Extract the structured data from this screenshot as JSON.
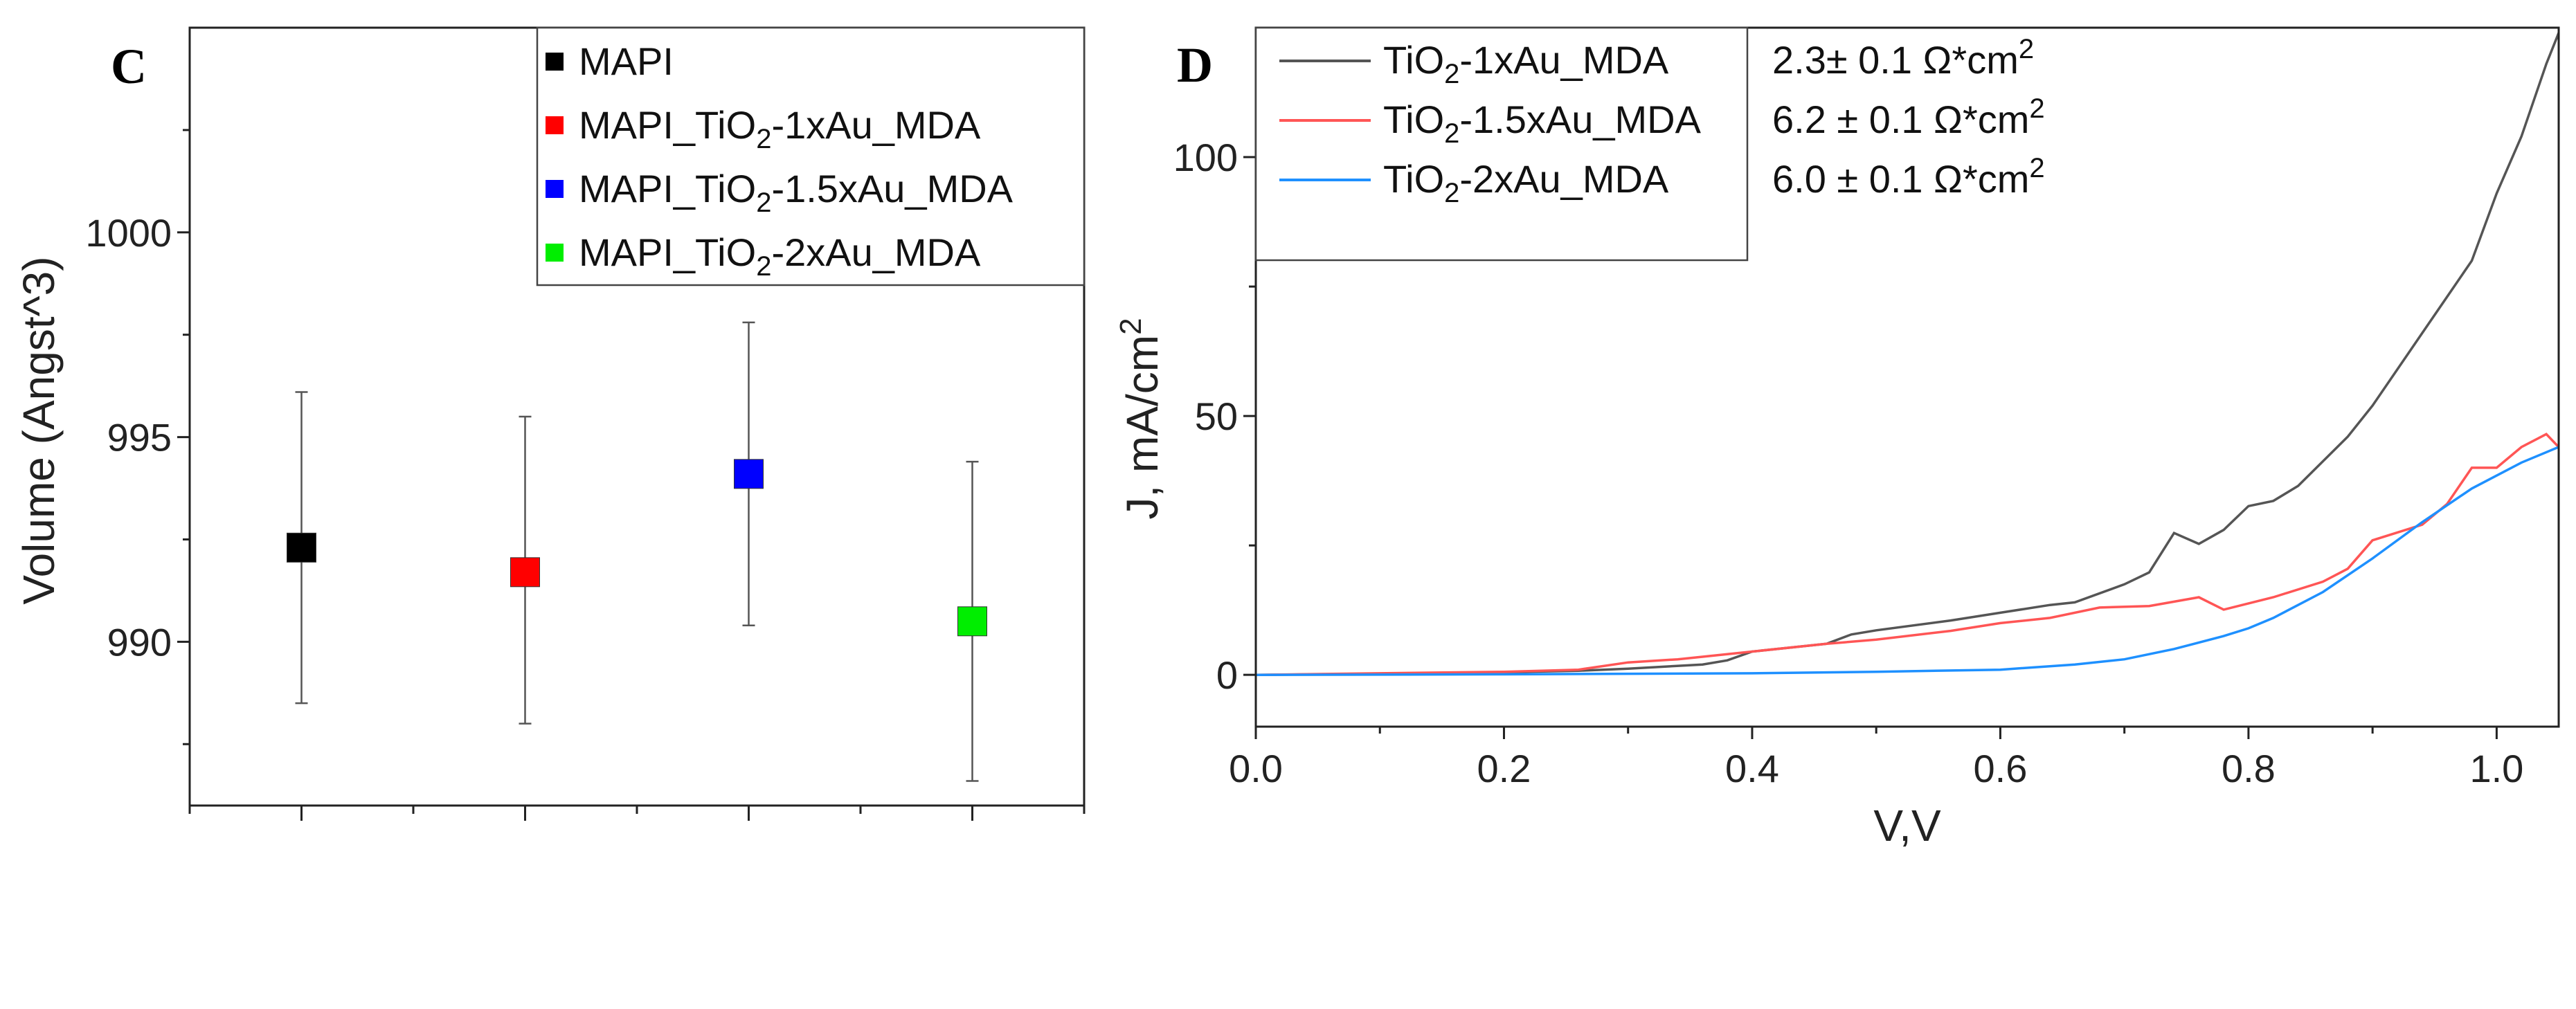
{
  "chart_data": [
    {
      "type": "scatter",
      "panel_label": "C",
      "title": "",
      "xlabel": "",
      "ylabel": "Volume (Angst^3)",
      "xlim": [
        0.5,
        4.5
      ],
      "ylim": [
        986,
        1005
      ],
      "x_ticks": [
        1,
        2,
        3,
        4
      ],
      "y_ticks": [
        990,
        995,
        1000
      ],
      "y_tick_labels": [
        "990",
        "995",
        "1000"
      ],
      "y_minor_ticks": [
        987.5,
        992.5,
        997.5,
        1002.5
      ],
      "legend_position": "top-right",
      "series": [
        {
          "name": "MAPI",
          "label": {
            "pre": "MAPI",
            "sub": "",
            "post": ""
          },
          "color": "#000000",
          "x": 1,
          "y": 992.3,
          "err_low": 988.5,
          "err_high": 996.1
        },
        {
          "name": "MAPI_TiO2-1xAu_MDA",
          "label": {
            "pre": "MAPI_TiO",
            "sub": "2",
            "post": "-1xAu_MDA"
          },
          "color": "#ff0000",
          "x": 2,
          "y": 991.7,
          "err_low": 988.0,
          "err_high": 995.5
        },
        {
          "name": "MAPI_TiO2-1.5xAu_MDA",
          "label": {
            "pre": "MAPI_TiO",
            "sub": "2",
            "post": "-1.5xAu_MDA"
          },
          "color": "#0000ff",
          "x": 3,
          "y": 994.1,
          "err_low": 990.4,
          "err_high": 997.8
        },
        {
          "name": "MAPI_TiO2-2xAu_MDA",
          "label": {
            "pre": "MAPI_TiO",
            "sub": "2",
            "post": "-2xAu_MDA"
          },
          "color": "#00ee00",
          "x": 4,
          "y": 990.5,
          "err_low": 986.6,
          "err_high": 994.4
        }
      ]
    },
    {
      "type": "line",
      "panel_label": "D",
      "title": "",
      "xlabel": "V,V",
      "ylabel": {
        "pre": "J, mA/cm",
        "sup": "2"
      },
      "xlim": [
        0,
        1.05
      ],
      "ylim": [
        -10,
        125
      ],
      "x_ticks": [
        0,
        0.2,
        0.4,
        0.6,
        0.8,
        1.0
      ],
      "x_tick_labels": [
        "0.0",
        "0.2",
        "0.4",
        "0.6",
        "0.8",
        "1.0"
      ],
      "x_minor_ticks": [
        0.1,
        0.3,
        0.5,
        0.7,
        0.9
      ],
      "y_ticks": [
        0,
        50,
        100
      ],
      "y_tick_labels": [
        "0",
        "50",
        "100"
      ],
      "y_minor_ticks": [
        25,
        75
      ],
      "legend_position": "top-left",
      "series": [
        {
          "name": "TiO2-1xAu_MDA",
          "label": {
            "pre": "TiO",
            "sub": "2",
            "post": "-1xAu_MDA"
          },
          "color": "#555555",
          "annotation": {
            "text": "2.3± 0.1 Ω*cm",
            "sup": "2",
            "color": "#000000"
          },
          "x": [
            0,
            0.1,
            0.2,
            0.26,
            0.3,
            0.36,
            0.38,
            0.4,
            0.44,
            0.46,
            0.48,
            0.5,
            0.56,
            0.6,
            0.64,
            0.66,
            0.7,
            0.72,
            0.74,
            0.76,
            0.78,
            0.8,
            0.82,
            0.84,
            0.88,
            0.9,
            0.94,
            0.96,
            0.98,
            1.0,
            1.02,
            1.04,
            1.05
          ],
          "y": [
            0,
            0.2,
            0.5,
            0.8,
            1.2,
            2,
            2.8,
            4.5,
            5.5,
            6,
            7.8,
            8.6,
            10.5,
            12,
            13.5,
            14,
            17.5,
            19.8,
            27.4,
            25.3,
            28,
            32.6,
            33.6,
            36.5,
            46,
            52,
            66,
            73,
            80,
            93,
            104,
            118,
            124
          ]
        },
        {
          "name": "TiO2-1.5xAu_MDA",
          "label": {
            "pre": "TiO",
            "sub": "2",
            "post": "-1.5xAu_MDA"
          },
          "color": "#ff5555",
          "annotation": {
            "text": "6.2 ± 0.1 Ω*cm",
            "sup": "2",
            "color": "#ff0000"
          },
          "x": [
            0,
            0.1,
            0.2,
            0.26,
            0.3,
            0.34,
            0.4,
            0.46,
            0.5,
            0.56,
            0.6,
            0.64,
            0.68,
            0.72,
            0.76,
            0.78,
            0.82,
            0.86,
            0.88,
            0.9,
            0.94,
            0.96,
            0.98,
            1.0,
            1.02,
            1.04,
            1.05
          ],
          "y": [
            0,
            0.3,
            0.6,
            1,
            2.4,
            3,
            4.5,
            6,
            6.8,
            8.5,
            10,
            11,
            13,
            13.3,
            15,
            12.6,
            15,
            18,
            20.5,
            26,
            29,
            33,
            40,
            40,
            44,
            46.5,
            44
          ]
        },
        {
          "name": "TiO2-2xAu_MDA",
          "label": {
            "pre": "TiO",
            "sub": "2",
            "post": "-2xAu_MDA"
          },
          "color": "#1e90ff",
          "annotation": {
            "text": "6.0 ± 0.1 Ω*cm",
            "sup": "2",
            "color": "#0000ff"
          },
          "x": [
            0,
            0.2,
            0.4,
            0.5,
            0.6,
            0.66,
            0.7,
            0.74,
            0.78,
            0.8,
            0.82,
            0.86,
            0.9,
            0.94,
            0.98,
            1.02,
            1.05
          ],
          "y": [
            0,
            0.1,
            0.3,
            0.6,
            1,
            2,
            3,
            5,
            7.5,
            9,
            11,
            16,
            22.5,
            29.5,
            36,
            41,
            44
          ]
        }
      ]
    }
  ]
}
